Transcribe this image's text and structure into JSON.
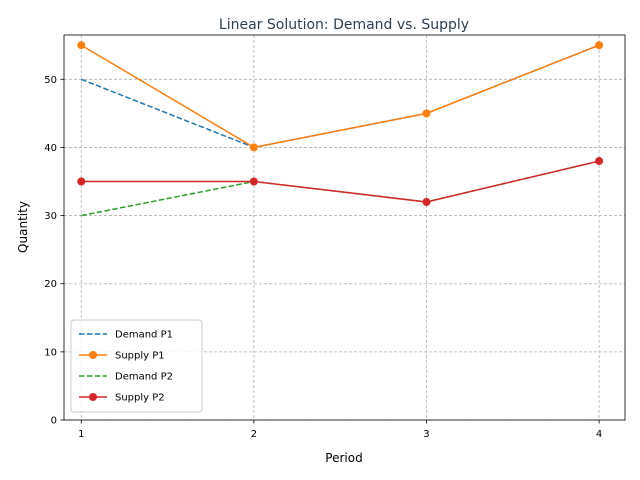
{
  "chart_data": {
    "type": "line",
    "title": "Linear Solution: Demand vs. Supply",
    "title_color": "#2c3e50",
    "xlabel": "Period",
    "ylabel": "Quantity",
    "x": [
      1,
      2,
      3,
      4
    ],
    "x_ticks": [
      "1",
      "2",
      "3",
      "4"
    ],
    "y_ticks": [
      "0",
      "10",
      "20",
      "30",
      "40",
      "50"
    ],
    "xlim": [
      0.9,
      4.15
    ],
    "ylim": [
      0,
      56.5
    ],
    "grid": true,
    "legend_position": "lower-left",
    "series": [
      {
        "name": "Demand P1",
        "values": [
          50,
          40,
          45,
          55
        ],
        "color": "#1f77b4",
        "style": "dashed",
        "marker": false
      },
      {
        "name": "Supply P1",
        "values": [
          55,
          40,
          45,
          55
        ],
        "color": "#ff7f0e",
        "style": "solid",
        "marker": true
      },
      {
        "name": "Demand P2",
        "values": [
          30,
          35,
          32,
          38
        ],
        "color": "#2ca02c",
        "style": "dashed",
        "marker": false
      },
      {
        "name": "Supply P2",
        "values": [
          35,
          35,
          32,
          38
        ],
        "color": "#d62728",
        "style": "solid",
        "marker": true
      }
    ]
  }
}
